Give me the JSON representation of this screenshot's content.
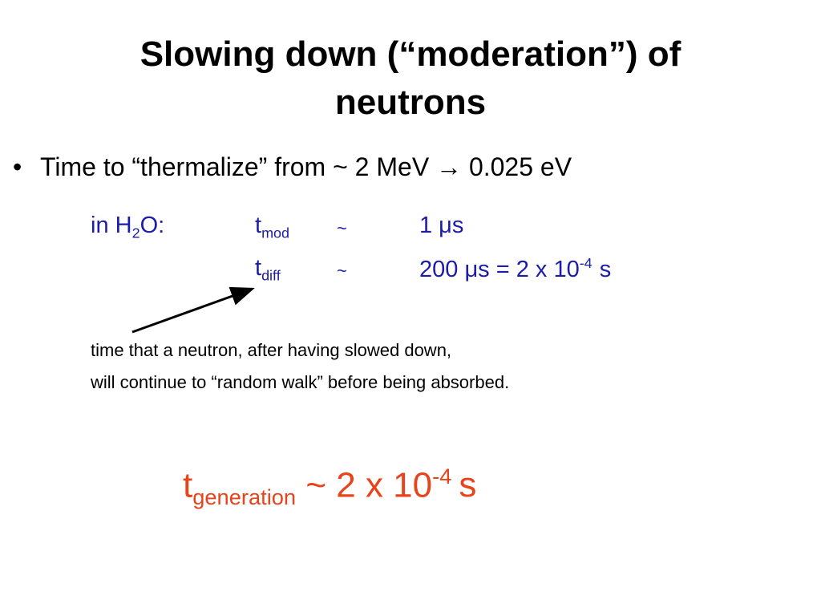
{
  "title": "Slowing down (“moderation”) of neutrons",
  "bullet": "Time to “thermalize” from ~ 2 MeV → 0.025 eV",
  "medium": {
    "base": "in H",
    "sub": "2",
    "rest": "O:"
  },
  "rows": [
    {
      "symbol": "t",
      "sub": "mod",
      "relation": "~",
      "value": "1 μs",
      "sup": null,
      "unit": null
    },
    {
      "symbol": "t",
      "sub": "diff",
      "relation": "~",
      "value": "200 μs = 2 x 10",
      "sup": "-4",
      "unit": "s"
    }
  ],
  "note": [
    "time that a neutron, after having slowed down,",
    "will continue to “random walk” before being absorbed."
  ],
  "generation": {
    "symbol": "t",
    "sub": "generation",
    "value": "~ 2 x 10",
    "sup": "-4",
    "unit": "s"
  }
}
